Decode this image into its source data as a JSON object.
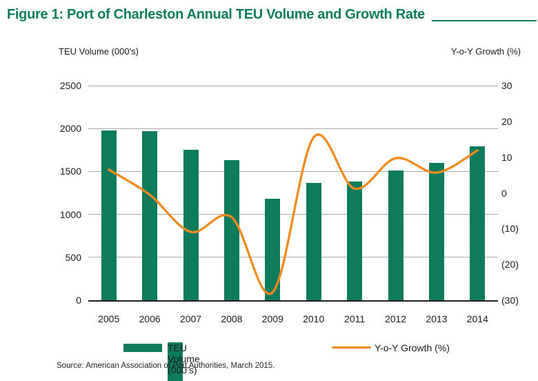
{
  "title": "Figure 1: Port of Charleston Annual TEU Volume and Growth Rate",
  "axes": {
    "left_title": "TEU Volume (000's)",
    "right_title": "Y-o-Y Growth (%)",
    "left_ticks": [
      "2500",
      "2000",
      "1500",
      "1000",
      "500",
      "0"
    ],
    "right_ticks": [
      "30",
      "20",
      "10",
      "0",
      "(10)",
      "(20)",
      "(30)"
    ]
  },
  "legend": {
    "bar_label": "TEU Volume (000’s)",
    "line_label": "Y-o-Y Growth (%)"
  },
  "source": "Source: American Association of Port Authorities, March 2015.",
  "colors": {
    "green": "#0C7C5C",
    "orange": "#F28A1E",
    "grid": "#A8A8A8",
    "axis": "#231F20",
    "text": "#1B1B1B"
  },
  "chart_data": {
    "type": "bar",
    "title": "Figure 1: Port of Charleston Annual TEU Volume and Growth Rate",
    "categories": [
      "2005",
      "2006",
      "2007",
      "2008",
      "2009",
      "2010",
      "2011",
      "2012",
      "2013",
      "2014"
    ],
    "series": [
      {
        "name": "TEU Volume (000's)",
        "type": "bar",
        "axis": "left",
        "values": [
          1979,
          1969,
          1754,
          1636,
          1181,
          1365,
          1381,
          1515,
          1601,
          1792
        ]
      },
      {
        "name": "Y-o-Y Growth (%)",
        "type": "line",
        "axis": "right",
        "smooth": true,
        "values": [
          6.5,
          -0.5,
          -10.9,
          -6.8,
          -27.8,
          15.5,
          1.2,
          9.7,
          5.7,
          11.9
        ]
      }
    ],
    "xlabel": "",
    "ylabel_left": "TEU Volume (000's)",
    "ylabel_right": "Y-o-Y Growth (%)",
    "left_ylim": [
      0,
      2500
    ],
    "right_ylim": [
      -30,
      30
    ],
    "grid": true,
    "legend_position": "bottom"
  }
}
